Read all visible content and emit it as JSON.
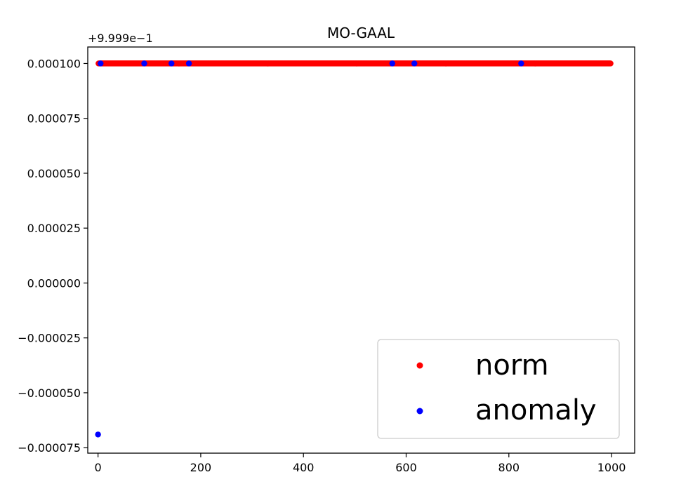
{
  "chart_data": {
    "type": "scatter",
    "title": "MO-GAAL",
    "xlabel": "",
    "ylabel": "",
    "y_offset_label": "+9.999e−1",
    "xlim": [
      -20,
      1045
    ],
    "ylim": [
      -7.75e-05,
      0.0001075
    ],
    "x_ticks": [
      0,
      200,
      400,
      600,
      800,
      1000
    ],
    "x_tick_labels": [
      "0",
      "200",
      "400",
      "600",
      "800",
      "1000"
    ],
    "y_ticks": [
      0.0001,
      7.5e-05,
      5e-05,
      2.5e-05,
      0.0,
      -2.5e-05,
      -5e-05,
      -7.5e-05
    ],
    "y_tick_labels": [
      "0.000100",
      "0.000075",
      "0.000050",
      "0.000025",
      "0.000000",
      "−0.000025",
      "−0.000050",
      "−0.000075"
    ],
    "grid": false,
    "legend_position": "lower-right",
    "series": [
      {
        "name": "norm",
        "color": "#ff0000",
        "x_range": [
          1,
          998
        ],
        "y": 0.0001
      },
      {
        "name": "anomaly",
        "color": "#0000ff",
        "points": [
          {
            "x": 0,
            "y": -6.9e-05
          },
          {
            "x": 5,
            "y": 0.0001
          },
          {
            "x": 90,
            "y": 0.0001
          },
          {
            "x": 143,
            "y": 0.0001
          },
          {
            "x": 177,
            "y": 0.0001
          },
          {
            "x": 573,
            "y": 0.0001
          },
          {
            "x": 616,
            "y": 0.0001
          },
          {
            "x": 824,
            "y": 0.0001
          }
        ]
      }
    ]
  }
}
